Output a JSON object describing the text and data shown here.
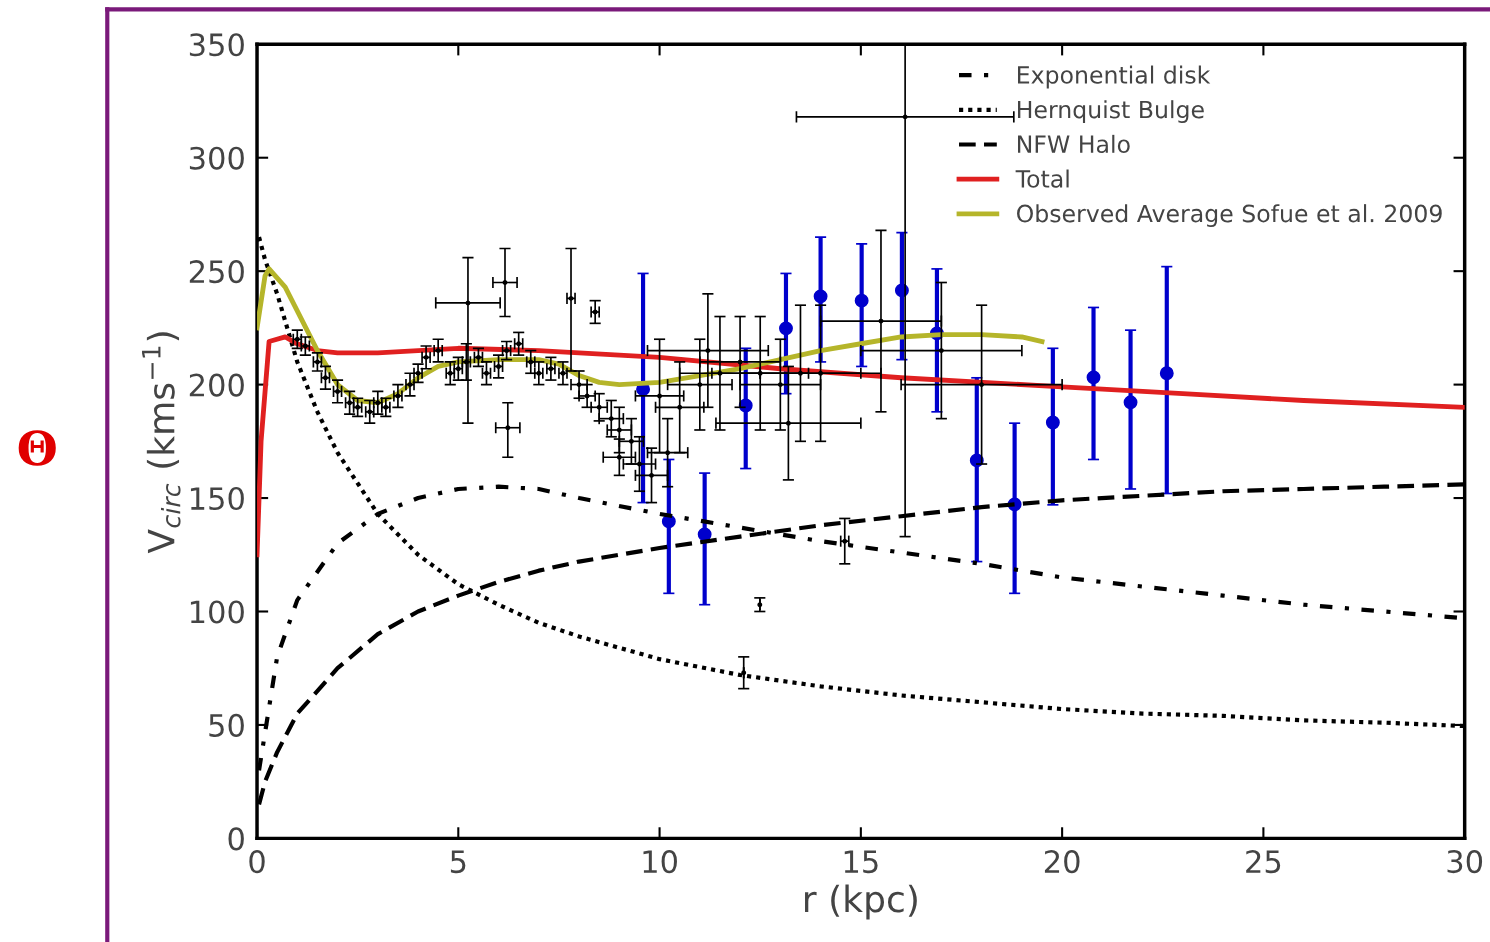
{
  "chart_data": {
    "type": "line",
    "xlabel": "r (kpc)",
    "ylabel": "V$_{circ}$ (kms$^{−1}$)",
    "xlim": [
      0,
      30
    ],
    "ylim": [
      0,
      350
    ],
    "xticks": [
      0,
      5,
      10,
      15,
      20,
      25,
      30
    ],
    "yticks": [
      0,
      50,
      100,
      150,
      200,
      250,
      300,
      350
    ],
    "legend": "top right",
    "grid": false,
    "annotations": [
      "Θ"
    ],
    "series": [
      {
        "name": "Exponential disk",
        "type": "line",
        "color": "#000000",
        "line_style": "dashdot",
        "x": [
          0.05,
          0.5,
          1,
          2,
          3,
          4,
          5,
          6,
          7,
          8,
          10,
          12,
          14,
          16,
          18,
          20,
          22,
          24,
          26,
          28,
          30
        ],
        "values": [
          30,
          80,
          105,
          130,
          143,
          150,
          154,
          155,
          154,
          150,
          143,
          137,
          131,
          126,
          121,
          115,
          111,
          107,
          103,
          100,
          97
        ]
      },
      {
        "name": "Hernquist Bulge",
        "type": "line",
        "color": "#000000",
        "line_style": "dotted",
        "x": [
          0.05,
          0.2,
          0.5,
          1,
          1.5,
          2,
          3,
          4,
          5,
          6,
          7,
          8,
          10,
          12,
          14,
          16,
          18,
          20,
          22,
          24,
          26,
          28,
          30
        ],
        "values": [
          265,
          255,
          240,
          210,
          188,
          170,
          143,
          125,
          112,
          103,
          95,
          89,
          79,
          72,
          67,
          63,
          60,
          57,
          55,
          54,
          52,
          51,
          49.5
        ]
      },
      {
        "name": "NFW Halo",
        "type": "line",
        "color": "#000000",
        "line_style": "dashed",
        "x": [
          0.05,
          0.2,
          0.5,
          1,
          2,
          3,
          4,
          5,
          6,
          7,
          8,
          10,
          12,
          14,
          16,
          18,
          20,
          22,
          24,
          26,
          28,
          30
        ],
        "values": [
          15,
          25,
          38,
          55,
          75,
          90,
          100,
          107,
          113,
          118,
          122,
          128,
          133,
          138,
          142,
          146,
          149,
          151,
          153,
          154,
          155,
          156
        ]
      },
      {
        "type": "scatter",
        "color": "#000000",
        "marker": "circle",
        "x": [
          1.0,
          1.2,
          1.5,
          1.7,
          2.0,
          2.3,
          2.5,
          2.8,
          3.0,
          3.2,
          3.5,
          3.8,
          4.0,
          4.2,
          4.5,
          4.8,
          5.0,
          5.2,
          5.5,
          5.7,
          6.0,
          6.2,
          6.5,
          6.8,
          7.0,
          7.3,
          7.6,
          8.0,
          8.2,
          8.5,
          8.8,
          9.0,
          9.3,
          9.5,
          9.8,
          10.2,
          10.5,
          11.0,
          11.5,
          12.0,
          12.5,
          13.0,
          13.5,
          14.0,
          15.5,
          17.0,
          5.24,
          6.16,
          6.23,
          7.8,
          16.1,
          12.49,
          12.09,
          14.6,
          8.4,
          9.0,
          10.0,
          11.2,
          13.2,
          18.0
        ],
        "values": [
          220,
          217,
          210,
          203,
          197,
          192,
          190,
          188,
          192,
          190,
          195,
          200,
          205,
          212,
          215,
          205,
          207,
          210,
          212,
          205,
          208,
          215,
          218,
          210,
          205,
          207,
          205,
          200,
          195,
          190,
          185,
          180,
          175,
          165,
          160,
          170,
          190,
          200,
          205,
          210,
          205,
          200,
          205,
          205,
          228,
          215,
          236,
          245,
          181,
          238,
          318,
          103,
          73,
          131,
          232,
          168,
          195,
          215,
          183,
          200
        ],
        "errors": [
          4,
          4,
          4,
          5,
          5,
          5,
          4,
          5,
          5,
          4,
          5,
          5,
          4,
          5,
          5,
          5,
          5,
          8,
          4,
          5,
          5,
          4,
          5,
          5,
          5,
          5,
          5,
          6,
          5,
          6,
          8,
          10,
          10,
          12,
          12,
          15,
          20,
          20,
          25,
          20,
          25,
          20,
          30,
          30,
          40,
          30,
          [
            183,
            256
          ],
          [
            230,
            260
          ],
          [
            168,
            192
          ],
          [
            206,
            260
          ],
          [
            133,
            350
          ],
          3,
          7,
          10,
          5,
          8,
          25,
          25,
          25,
          35
        ],
        "xerrors": [
          0.1,
          0.1,
          0.1,
          0.1,
          0.1,
          0.1,
          0.1,
          0.1,
          0.1,
          0.1,
          0.1,
          0.1,
          0.1,
          0.1,
          0.1,
          0.1,
          0.1,
          0.1,
          0.1,
          0.1,
          0.1,
          0.1,
          0.1,
          0.1,
          0.1,
          0.1,
          0.1,
          0.2,
          0.2,
          0.2,
          0.3,
          0.3,
          0.3,
          0.4,
          0.4,
          0.5,
          0.6,
          0.8,
          1.0,
          1.0,
          1.2,
          1.0,
          1.5,
          1.5,
          1.5,
          2.0,
          0.8,
          0.3,
          0.3,
          0.1,
          2.7,
          null,
          null,
          0.1,
          0.1,
          0.4,
          0.6,
          1.5,
          1.8,
          2.0
        ]
      },
      {
        "type": "scatter",
        "color": "#0000cc",
        "marker": "circle",
        "x": [
          9.59,
          10.23,
          11.12,
          12.14,
          13.14,
          14.0,
          15.02,
          16.02,
          16.89,
          17.88,
          18.82,
          19.77,
          20.78,
          21.7,
          22.6
        ],
        "values": [
          198,
          139.7,
          134,
          190.8,
          224.8,
          238.9,
          237,
          241.5,
          222.6,
          166.6,
          147.2,
          183.3,
          203.2,
          192.2,
          205
        ],
        "errors": [
          [
            148,
            249
          ],
          [
            108,
            167
          ],
          [
            103,
            161
          ],
          [
            163,
            216
          ],
          [
            196,
            249
          ],
          [
            210,
            265
          ],
          [
            208,
            262
          ],
          [
            211,
            267
          ],
          [
            188,
            251
          ],
          [
            122,
            203
          ],
          [
            108,
            183
          ],
          [
            147,
            216
          ],
          [
            167,
            234
          ],
          [
            154,
            224
          ],
          [
            152,
            252
          ]
        ]
      },
      {
        "name": "Total",
        "type": "line",
        "color": "#e02020",
        "line_style": "solid",
        "x": [
          0,
          0.1,
          0.3,
          0.7,
          1.0,
          1.5,
          2,
          3,
          5,
          7,
          10,
          13,
          16,
          20,
          23,
          26,
          30
        ],
        "values": [
          125,
          175,
          219,
          221,
          218,
          215,
          214,
          214,
          216,
          215,
          212,
          207,
          203,
          199,
          196,
          193,
          190
        ]
      },
      {
        "name": "Observed Average Sofue et al. 2009",
        "type": "line",
        "color": "#b5b52a",
        "line_style": "solid",
        "x": [
          0,
          0.2,
          0.3,
          0.7,
          1.5,
          2.0,
          2.5,
          3.0,
          3.5,
          4,
          4.5,
          5,
          6,
          7,
          7.5,
          8,
          8.5,
          9,
          10,
          11,
          12,
          13,
          14,
          15,
          16,
          17,
          18,
          19,
          19.5
        ],
        "values": [
          225,
          248,
          251,
          243,
          215,
          200,
          193,
          192,
          196,
          203,
          208,
          210,
          211,
          211,
          209,
          204,
          201,
          200,
          201,
          204,
          207,
          211,
          215,
          218,
          221,
          222,
          222,
          221,
          219
        ]
      }
    ]
  }
}
